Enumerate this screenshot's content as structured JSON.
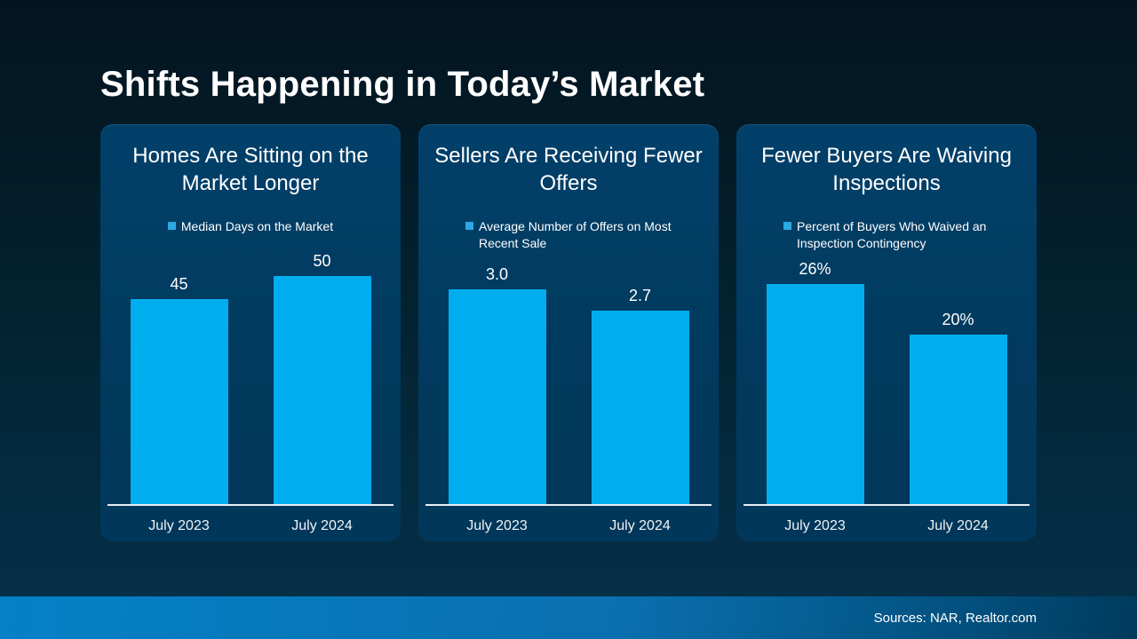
{
  "slide": {
    "title": "Shifts Happening in Today’s Market",
    "footer": {
      "sources": "Sources: NAR, Realtor.com"
    }
  },
  "colors": {
    "bar": "#00aeef",
    "legend_marker": "#2ba9e2",
    "card_background": "#013a5e",
    "page_background_top": "#031520",
    "page_background_bottom": "#053049",
    "footer_gradient_left": "#0581c8",
    "footer_gradient_right": "#003a5c",
    "axis_line": "#e8eef2",
    "text": "#ffffff"
  },
  "chart_data": [
    {
      "type": "bar",
      "title": "Homes Are Sitting on the Market Longer",
      "legend": "Median Days on the Market",
      "categories": [
        "July 2023",
        "July 2024"
      ],
      "values": [
        45,
        50
      ],
      "value_labels": [
        "45",
        "50"
      ],
      "ylim": [
        0,
        50
      ],
      "grid": false,
      "legend_position": "top-center"
    },
    {
      "type": "bar",
      "title": "Sellers Are Receiving Fewer Offers",
      "legend": "Average Number of Offers on Most Recent Sale",
      "categories": [
        "July 2023",
        "July 2024"
      ],
      "values": [
        3.0,
        2.7
      ],
      "value_labels": [
        "3.0",
        "2.7"
      ],
      "ylim": [
        0,
        3.0
      ],
      "grid": false,
      "legend_position": "top-center"
    },
    {
      "type": "bar",
      "title": "Fewer Buyers Are Waiving Inspections",
      "legend": "Percent of Buyers Who Waived an Inspection Contingency",
      "categories": [
        "July 2023",
        "July 2024"
      ],
      "values": [
        26,
        20
      ],
      "value_labels": [
        "26%",
        "20%"
      ],
      "ylim": [
        0,
        26
      ],
      "grid": false,
      "legend_position": "top-center"
    }
  ]
}
